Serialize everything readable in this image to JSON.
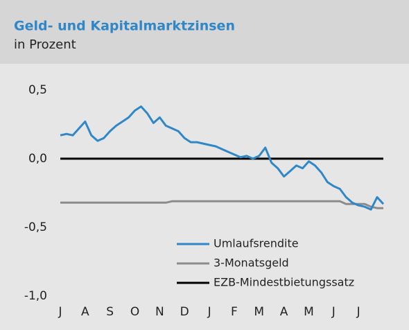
{
  "chart_data": {
    "type": "line",
    "title": "Geld- und Kapitalmarktzinsen",
    "subtitle": "in Prozent",
    "categories": [
      "J",
      null,
      null,
      null,
      "A",
      null,
      null,
      null,
      "S",
      null,
      null,
      null,
      "O",
      null,
      null,
      null,
      "N",
      null,
      null,
      null,
      "D",
      null,
      null,
      null,
      "J",
      null,
      null,
      null,
      "F",
      null,
      null,
      null,
      "M",
      null,
      null,
      null,
      "A",
      null,
      null,
      null,
      "M",
      null,
      null,
      null,
      "J",
      null,
      null,
      null,
      "J",
      null,
      null,
      null,
      null
    ],
    "series": [
      {
        "name": "Umlaufsrendite",
        "color": "#2f87c8",
        "values": [
          0.17,
          0.18,
          0.17,
          0.22,
          0.27,
          0.17,
          0.13,
          0.15,
          0.2,
          0.24,
          0.27,
          0.3,
          0.35,
          0.38,
          0.33,
          0.26,
          0.3,
          0.24,
          0.22,
          0.2,
          0.15,
          0.12,
          0.12,
          0.11,
          0.1,
          0.09,
          0.07,
          0.05,
          0.03,
          0.01,
          0.02,
          0.0,
          0.02,
          0.08,
          -0.03,
          -0.07,
          -0.13,
          -0.09,
          -0.05,
          -0.07,
          -0.02,
          -0.05,
          -0.1,
          -0.17,
          -0.2,
          -0.22,
          -0.28,
          -0.32,
          -0.34,
          -0.35,
          -0.37,
          -0.28,
          -0.33
        ]
      },
      {
        "name": "3-Monatsgeld",
        "color": "#8c8c8c",
        "values": [
          -0.32,
          -0.32,
          -0.32,
          -0.32,
          -0.32,
          -0.32,
          -0.32,
          -0.32,
          -0.32,
          -0.32,
          -0.32,
          -0.32,
          -0.32,
          -0.32,
          -0.32,
          -0.32,
          -0.32,
          -0.32,
          -0.31,
          -0.31,
          -0.31,
          -0.31,
          -0.31,
          -0.31,
          -0.31,
          -0.31,
          -0.31,
          -0.31,
          -0.31,
          -0.31,
          -0.31,
          -0.31,
          -0.31,
          -0.31,
          -0.31,
          -0.31,
          -0.31,
          -0.31,
          -0.31,
          -0.31,
          -0.31,
          -0.31,
          -0.31,
          -0.31,
          -0.31,
          -0.31,
          -0.33,
          -0.33,
          -0.33,
          -0.33,
          -0.35,
          -0.36,
          -0.36
        ]
      },
      {
        "name": "EZB-Mindestbietungssatz",
        "color": "#000000",
        "values": [
          0,
          0,
          0,
          0,
          0,
          0,
          0,
          0,
          0,
          0,
          0,
          0,
          0,
          0,
          0,
          0,
          0,
          0,
          0,
          0,
          0,
          0,
          0,
          0,
          0,
          0,
          0,
          0,
          0,
          0,
          0,
          0,
          0,
          0,
          0,
          0,
          0,
          0,
          0,
          0,
          0,
          0,
          0,
          0,
          0,
          0,
          0,
          0,
          0,
          0,
          0,
          0,
          0
        ]
      }
    ],
    "ylim": [
      -1.0,
      0.6
    ],
    "yticks": [
      {
        "value": 0.5,
        "label": "0,5"
      },
      {
        "value": 0.0,
        "label": "0,0"
      },
      {
        "value": -0.5,
        "label": "-0,5"
      },
      {
        "value": -1.0,
        "label": "-1,0"
      }
    ],
    "grid": false,
    "legend": "lower right"
  }
}
